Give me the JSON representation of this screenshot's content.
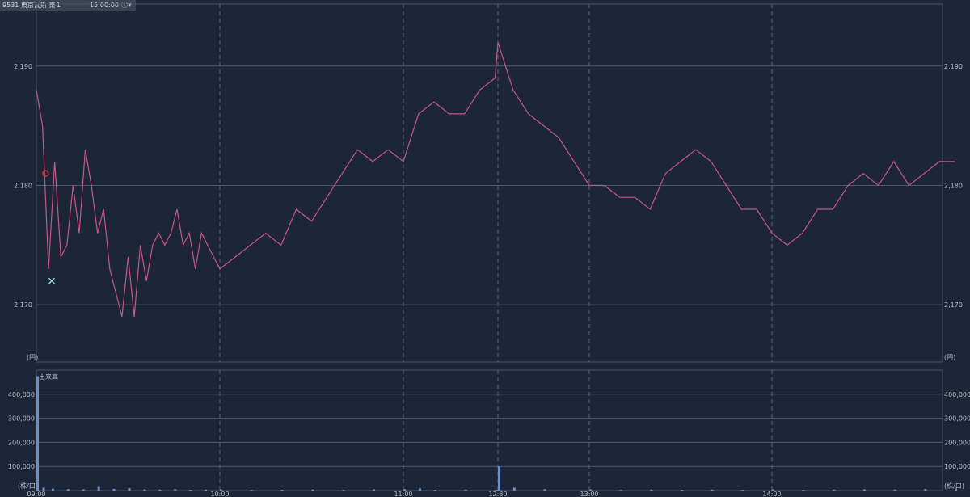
{
  "header": {
    "code": "9531",
    "name": "東京瓦斯",
    "market": "東１",
    "time": "15:00:00",
    "info_icon": "info-icon",
    "caret_icon": "caret-down-icon"
  },
  "chart_data": [
    {
      "type": "line",
      "title": "",
      "xlabel": "",
      "ylabel": "",
      "unit_label": "(円)",
      "x_tick_labels": [
        "09:00",
        "10:00",
        "11:00",
        "12:30",
        "13:00",
        "14:00"
      ],
      "y_ticks": [
        2170,
        2180,
        2190
      ],
      "y_tick_labels": [
        "2,170",
        "2,180",
        "2,190"
      ],
      "ylim": [
        2165.2,
        2195.2
      ],
      "grid": true,
      "series": [
        {
          "color": "#c8568a",
          "x": [
            "09:00",
            "09:02",
            "09:04",
            "09:06",
            "09:08",
            "09:10",
            "09:12",
            "09:14",
            "09:16",
            "09:18",
            "09:20",
            "09:22",
            "09:24",
            "09:26",
            "09:28",
            "09:30",
            "09:32",
            "09:34",
            "09:36",
            "09:38",
            "09:40",
            "09:42",
            "09:44",
            "09:46",
            "09:48",
            "09:50",
            "09:52",
            "09:54",
            "09:56",
            "09:58",
            "10:00",
            "10:05",
            "10:10",
            "10:15",
            "10:20",
            "10:25",
            "10:30",
            "10:35",
            "10:40",
            "10:45",
            "10:50",
            "10:55",
            "11:00",
            "11:05",
            "11:10",
            "11:15",
            "11:20",
            "11:25",
            "11:30",
            "12:30",
            "12:35",
            "12:40",
            "12:45",
            "12:50",
            "12:55",
            "13:00",
            "13:05",
            "13:10",
            "13:15",
            "13:20",
            "13:25",
            "13:30",
            "13:35",
            "13:40",
            "13:45",
            "13:50",
            "13:55",
            "14:00",
            "14:05",
            "14:10",
            "14:15",
            "14:20",
            "14:25",
            "14:30",
            "14:35",
            "14:40",
            "14:45",
            "14:50",
            "14:55",
            "15:00"
          ],
          "values": [
            2188,
            2185,
            2173,
            2182,
            2174,
            2175,
            2180,
            2176,
            2183,
            2180,
            2176,
            2178,
            2173,
            2171,
            2169,
            2174,
            2169,
            2175,
            2172,
            2175,
            2176,
            2175,
            2176,
            2178,
            2175,
            2176,
            2173,
            2176,
            2175,
            2174,
            2173,
            2174,
            2175,
            2176,
            2175,
            2178,
            2177,
            2179,
            2181,
            2183,
            2182,
            2183,
            2182,
            2186,
            2187,
            2186,
            2186,
            2188,
            2189,
            2192,
            2188,
            2186,
            2185,
            2184,
            2182,
            2180,
            2180,
            2179,
            2179,
            2178,
            2181,
            2182,
            2183,
            2182,
            2180,
            2178,
            2178,
            2176,
            2175,
            2176,
            2178,
            2178,
            2180,
            2181,
            2180,
            2182,
            2180,
            2181,
            2182,
            2182
          ],
          "marker_buy": {
            "x": "09:03",
            "y": 2181
          },
          "marker_sell": {
            "x": "09:05",
            "y": 2172
          }
        }
      ]
    },
    {
      "type": "bar",
      "title": "出来高",
      "xlabel": "",
      "ylabel": "",
      "unit_label": "(株/口)",
      "y_ticks": [
        100000,
        200000,
        300000,
        400000
      ],
      "y_tick_labels": [
        "100,000",
        "200,000",
        "300,000",
        "400,000"
      ],
      "ylim": [
        0,
        500000
      ],
      "grid": true,
      "series": [
        {
          "color": "#6c8fc9",
          "x": [
            "09:00",
            "09:02",
            "09:05",
            "09:10",
            "09:15",
            "09:20",
            "09:25",
            "09:30",
            "09:35",
            "09:40",
            "09:45",
            "09:50",
            "09:55",
            "10:00",
            "10:10",
            "10:20",
            "10:30",
            "10:40",
            "10:50",
            "11:00",
            "11:05",
            "11:10",
            "11:20",
            "11:30",
            "12:30",
            "12:35",
            "12:45",
            "13:00",
            "13:10",
            "13:20",
            "13:30",
            "13:40",
            "13:50",
            "14:00",
            "14:10",
            "14:20",
            "14:30",
            "14:40",
            "14:50",
            "15:00"
          ],
          "values": [
            475000,
            12000,
            8000,
            6000,
            5000,
            15000,
            7000,
            10000,
            5000,
            4000,
            6000,
            3000,
            4000,
            5000,
            3000,
            3000,
            4000,
            3000,
            5000,
            6000,
            9000,
            3000,
            4000,
            3000,
            100000,
            12000,
            6000,
            5000,
            3000,
            4000,
            3000,
            4000,
            3000,
            5000,
            3000,
            4000,
            5000,
            4000,
            6000,
            9000
          ]
        }
      ]
    }
  ]
}
